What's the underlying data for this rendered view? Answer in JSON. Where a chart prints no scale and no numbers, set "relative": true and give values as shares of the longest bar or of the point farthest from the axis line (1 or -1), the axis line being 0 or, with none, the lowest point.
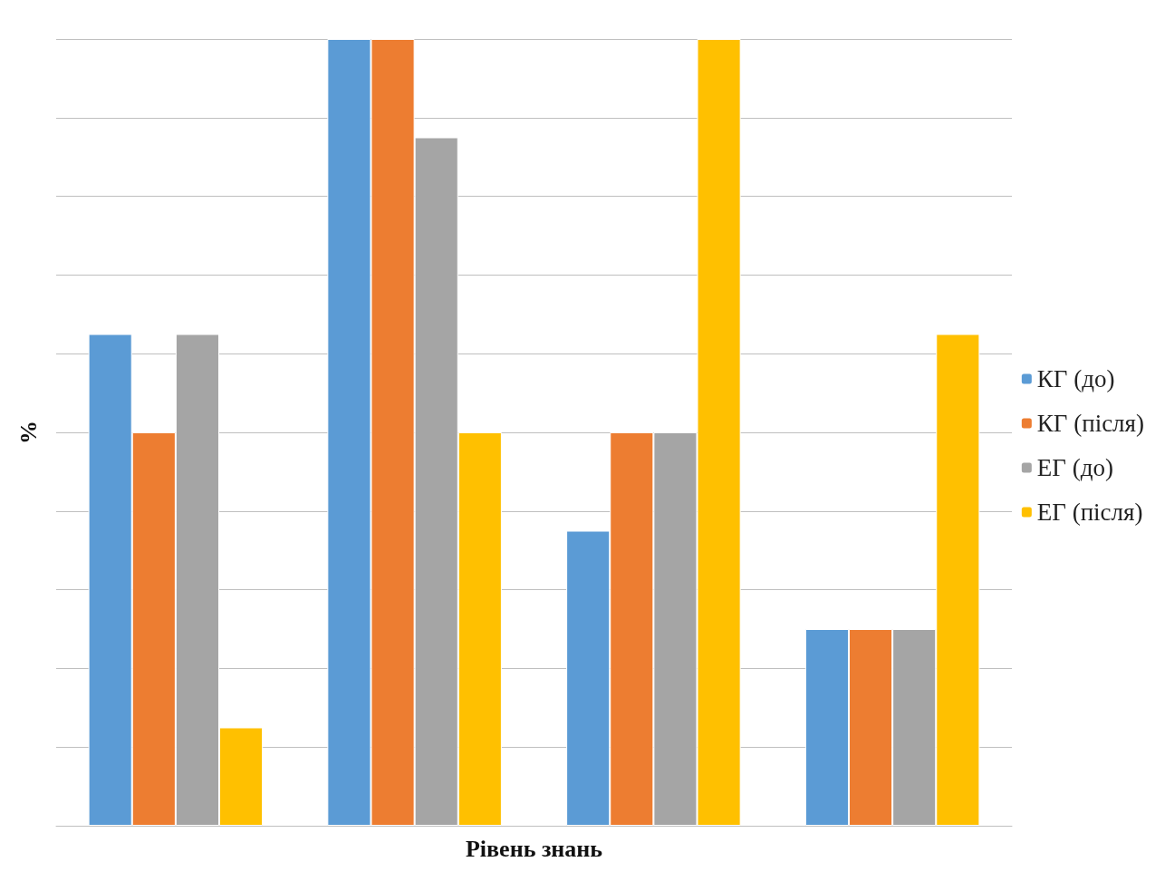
{
  "chart_data": {
    "type": "bar",
    "xlabel": "Рівень знань",
    "ylabel": "%",
    "relative": true,
    "categories": [
      null,
      null,
      null,
      null
    ],
    "series": [
      {
        "name": "КГ (до)",
        "color": "#5b9bd5",
        "values": [
          0.625,
          1,
          0.375,
          0.25
        ]
      },
      {
        "name": "КГ (після)",
        "color": "#ed7d31",
        "values": [
          0.5,
          1,
          0.5,
          0.25
        ]
      },
      {
        "name": "ЕГ (до)",
        "color": "#a5a5a5",
        "values": [
          0.625,
          0.875,
          0.5,
          0.25
        ]
      },
      {
        "name": "ЕГ (після)",
        "color": "#ffc000",
        "values": [
          0.125,
          0.5,
          1,
          0.625
        ]
      }
    ],
    "grid": true,
    "legend": "right"
  }
}
